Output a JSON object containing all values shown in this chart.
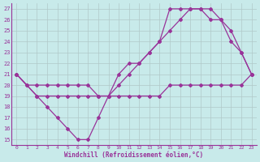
{
  "xlabel": "Windchill (Refroidissement éolien,°C)",
  "bg_color": "#c8eaea",
  "line_color": "#993399",
  "grid_color": "#b0c8c8",
  "xlim": [
    -0.5,
    23.5
  ],
  "ylim": [
    14.5,
    27.5
  ],
  "xticks": [
    0,
    1,
    2,
    3,
    4,
    5,
    6,
    7,
    8,
    9,
    10,
    11,
    12,
    13,
    14,
    15,
    16,
    17,
    18,
    19,
    20,
    21,
    22,
    23
  ],
  "yticks": [
    15,
    16,
    17,
    18,
    19,
    20,
    21,
    22,
    23,
    24,
    25,
    26,
    27
  ],
  "line1_x": [
    0,
    1,
    2,
    3,
    4,
    5,
    6,
    7,
    8,
    9,
    10,
    11,
    12,
    13,
    14,
    15,
    16,
    17,
    18,
    19,
    20,
    21,
    22,
    23
  ],
  "line1_y": [
    21,
    20,
    19,
    19,
    19,
    19,
    19,
    19,
    19,
    19,
    19,
    19,
    19,
    19,
    19,
    20,
    20,
    20,
    20,
    20,
    20,
    20,
    20,
    21
  ],
  "line2_x": [
    0,
    2,
    3,
    4,
    5,
    6,
    7,
    8,
    9,
    10,
    11,
    12,
    13,
    14,
    15,
    16,
    17,
    18,
    19,
    20,
    21,
    22,
    23
  ],
  "line2_y": [
    21,
    19,
    18,
    17,
    16,
    15,
    15,
    17,
    19,
    21,
    22,
    22,
    23,
    24,
    27,
    27,
    27,
    27,
    26,
    26,
    25,
    23,
    21
  ],
  "line3_x": [
    0,
    1,
    2,
    3,
    4,
    5,
    6,
    7,
    8,
    9,
    10,
    11,
    12,
    13,
    14,
    15,
    16,
    17,
    18,
    19,
    20,
    21,
    22,
    23
  ],
  "line3_y": [
    21,
    20,
    20,
    20,
    20,
    20,
    20,
    20,
    19,
    19,
    20,
    21,
    22,
    23,
    24,
    25,
    26,
    27,
    27,
    27,
    26,
    24,
    23,
    21
  ]
}
